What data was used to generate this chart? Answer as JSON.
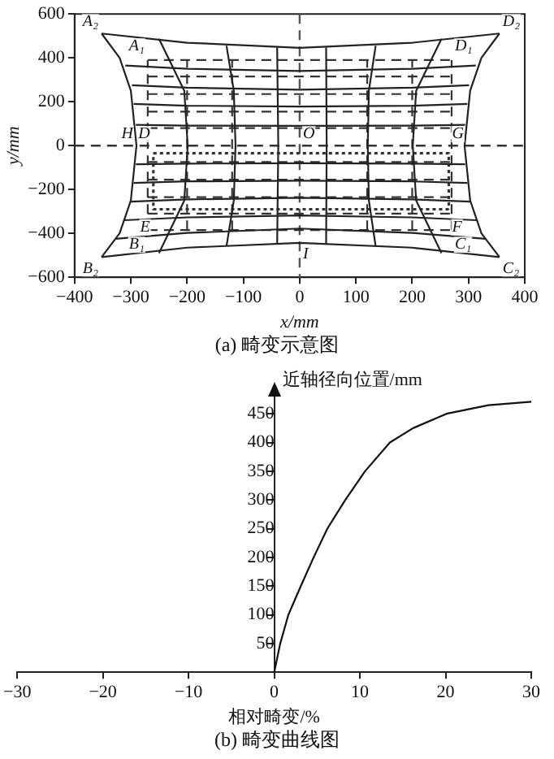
{
  "chart_data": [
    {
      "type": "line",
      "title": "(a) 畸变示意图",
      "xlabel": "x/mm",
      "ylabel": "y/mm",
      "xlim": [
        -400,
        400
      ],
      "ylim": [
        -600,
        600
      ],
      "xticks": [
        -400,
        -300,
        -200,
        -100,
        0,
        100,
        200,
        300,
        400
      ],
      "yticks": [
        -600,
        -400,
        -200,
        0,
        200,
        400,
        600
      ],
      "marker": "none",
      "ref_lines": [
        {
          "axis": "x",
          "value": 0,
          "line_style": "dashed",
          "color": "#555555"
        },
        {
          "axis": "y",
          "value": 0,
          "line_style": "dashed",
          "color": "#333333"
        }
      ],
      "series": [
        {
          "color": "#222222",
          "line_style": "solid",
          "x": [
            -352,
            -200,
            0,
            200,
            355
          ],
          "values": [
            511,
            469,
            446,
            469,
            511
          ]
        },
        {
          "color": "#222222",
          "line_style": "solid",
          "x": [
            -352,
            -200,
            0,
            200,
            355
          ],
          "values": [
            -508,
            -465,
            -443,
            -465,
            -508
          ]
        },
        {
          "color": "#222222",
          "line_style": "solid",
          "x": [
            -352,
            -320,
            -300,
            -290,
            -300,
            -320,
            -352
          ],
          "values": [
            511,
            400,
            250,
            0,
            -250,
            -400,
            -508
          ]
        },
        {
          "color": "#222222",
          "line_style": "solid",
          "x": [
            355,
            323,
            303,
            293,
            303,
            323,
            355
          ],
          "values": [
            511,
            400,
            250,
            0,
            -250,
            -400,
            -508
          ]
        },
        {
          "color": "#222222",
          "line_style": "solid",
          "x": [
            -250,
            -205,
            -199,
            -205,
            -250
          ],
          "values": [
            487,
            250,
            0,
            -250,
            -490
          ]
        },
        {
          "color": "#222222",
          "line_style": "solid",
          "x": [
            -130,
            -117,
            -114,
            -117,
            -130
          ],
          "values": [
            455,
            250,
            0,
            -250,
            -458
          ]
        },
        {
          "color": "#222222",
          "line_style": "solid",
          "x": [
            -40,
            -38,
            -40
          ],
          "values": [
            447,
            0,
            -450
          ]
        },
        {
          "color": "#222222",
          "line_style": "solid",
          "x": [
            47,
            48,
            47
          ],
          "values": [
            447,
            0,
            -450
          ]
        },
        {
          "color": "#222222",
          "line_style": "solid",
          "x": [
            135,
            123,
            121,
            123,
            135
          ],
          "values": [
            455,
            250,
            0,
            -250,
            -458
          ]
        },
        {
          "color": "#222222",
          "line_style": "solid",
          "x": [
            252,
            207,
            201,
            207,
            252
          ],
          "values": [
            487,
            250,
            0,
            -250,
            -490
          ]
        },
        {
          "color": "#222222",
          "line_style": "solid",
          "x": [
            -310,
            -200,
            0,
            200,
            313
          ],
          "values": [
            365,
            350,
            340,
            350,
            365
          ]
        },
        {
          "color": "#222222",
          "line_style": "solid",
          "x": [
            -298,
            -200,
            0,
            200,
            301
          ],
          "values": [
            275,
            264,
            255,
            264,
            275
          ]
        },
        {
          "color": "#222222",
          "line_style": "solid",
          "x": [
            -295,
            -200,
            0,
            200,
            298
          ],
          "values": [
            190,
            182,
            178,
            182,
            190
          ]
        },
        {
          "color": "#222222",
          "line_style": "solid",
          "x": [
            -291,
            -200,
            0,
            200,
            294
          ],
          "values": [
            95,
            91,
            90,
            91,
            95
          ]
        },
        {
          "color": "#222222",
          "line_style": "solid",
          "x": [
            -291,
            -200,
            0,
            200,
            294
          ],
          "values": [
            -85,
            -82,
            -80,
            -82,
            -85
          ]
        },
        {
          "color": "#222222",
          "line_style": "solid",
          "x": [
            -295,
            -200,
            0,
            200,
            298
          ],
          "values": [
            -170,
            -163,
            -160,
            -163,
            -170
          ]
        },
        {
          "color": "#222222",
          "line_style": "solid",
          "x": [
            -300,
            -200,
            0,
            200,
            303
          ],
          "values": [
            -255,
            -245,
            -238,
            -245,
            -255
          ]
        },
        {
          "color": "#222222",
          "line_style": "solid",
          "x": [
            -312,
            -200,
            0,
            200,
            315
          ],
          "values": [
            -340,
            -327,
            -318,
            -327,
            -340
          ]
        },
        {
          "color": "#222222",
          "line_style": "solid",
          "x": [
            -327,
            -200,
            0,
            200,
            330
          ],
          "values": [
            -425,
            -398,
            -378,
            -398,
            -425
          ]
        },
        {
          "color": "#333333",
          "line_style": "dashed",
          "x": [
            -270,
            270
          ],
          "values": [
            390,
            390
          ]
        },
        {
          "color": "#333333",
          "line_style": "dashed",
          "x": [
            -270,
            270
          ],
          "values": [
            315,
            315
          ]
        },
        {
          "color": "#333333",
          "line_style": "dashed",
          "x": [
            -270,
            270
          ],
          "values": [
            235,
            235
          ]
        },
        {
          "color": "#333333",
          "line_style": "dashed",
          "x": [
            -270,
            270
          ],
          "values": [
            155,
            155
          ]
        },
        {
          "color": "#333333",
          "line_style": "dashed",
          "x": [
            -270,
            270
          ],
          "values": [
            80,
            80
          ]
        },
        {
          "color": "#333333",
          "line_style": "dashed",
          "x": [
            -270,
            270
          ],
          "values": [
            -75,
            -75
          ]
        },
        {
          "color": "#333333",
          "line_style": "dashed",
          "x": [
            -270,
            270
          ],
          "values": [
            -155,
            -155
          ]
        },
        {
          "color": "#333333",
          "line_style": "dashed",
          "x": [
            -270,
            270
          ],
          "values": [
            -235,
            -235
          ]
        },
        {
          "color": "#333333",
          "line_style": "dashed",
          "x": [
            -270,
            270
          ],
          "values": [
            -310,
            -310
          ]
        },
        {
          "color": "#333333",
          "line_style": "dashed",
          "x": [
            -270,
            270
          ],
          "values": [
            -385,
            -385
          ]
        },
        {
          "color": "#333333",
          "line_style": "dashed",
          "x": [
            -270,
            -270
          ],
          "values": [
            -385,
            390
          ]
        },
        {
          "color": "#333333",
          "line_style": "dashed",
          "x": [
            -200,
            -200
          ],
          "values": [
            -385,
            390
          ]
        },
        {
          "color": "#333333",
          "line_style": "dashed",
          "x": [
            -120,
            -120
          ],
          "values": [
            -385,
            390
          ]
        },
        {
          "color": "#333333",
          "line_style": "dashed",
          "x": [
            120,
            120
          ],
          "values": [
            -385,
            390
          ]
        },
        {
          "color": "#333333",
          "line_style": "dashed",
          "x": [
            200,
            200
          ],
          "values": [
            -385,
            390
          ]
        },
        {
          "color": "#333333",
          "line_style": "dashed",
          "x": [
            270,
            270
          ],
          "values": [
            -385,
            390
          ]
        },
        {
          "color": "#333333",
          "line_style": "dotted",
          "x": [
            -260,
            265,
            265
          ],
          "values": [
            -35,
            -35,
            -290
          ]
        },
        {
          "color": "#333333",
          "line_style": "dotted",
          "x": [
            265,
            -260,
            -260
          ],
          "values": [
            -290,
            -290,
            -35
          ]
        }
      ],
      "annotations": [
        {
          "text": "A₂",
          "x": -352,
          "y": 511
        },
        {
          "text": "D₂",
          "x": 355,
          "y": 511
        },
        {
          "text": "A₁",
          "x": -270,
          "y": 400
        },
        {
          "text": "D₁",
          "x": 270,
          "y": 400
        },
        {
          "text": "B₁",
          "x": -270,
          "y": -400
        },
        {
          "text": "C₁",
          "x": 270,
          "y": -400
        },
        {
          "text": "B₂",
          "x": -352,
          "y": -508
        },
        {
          "text": "C₂",
          "x": 355,
          "y": -508
        },
        {
          "text": "H",
          "x": -290,
          "y": 0
        },
        {
          "text": "D",
          "x": -260,
          "y": 0
        },
        {
          "text": "O",
          "x": 0,
          "y": 0
        },
        {
          "text": "G",
          "x": 265,
          "y": 0
        },
        {
          "text": "E",
          "x": -260,
          "y": -320
        },
        {
          "text": "F",
          "x": 265,
          "y": -320
        },
        {
          "text": "I",
          "x": 0,
          "y": -443
        }
      ]
    },
    {
      "type": "line",
      "title": "(b) 畸变曲线图",
      "xlabel": "相对畸变/%",
      "ylabel": "近轴径向位置/mm",
      "xlim": [
        -30,
        30
      ],
      "ylim": [
        0,
        480
      ],
      "xticks": [
        -30,
        -20,
        -10,
        0,
        10,
        20,
        30
      ],
      "yticks": [
        50,
        100,
        150,
        200,
        250,
        300,
        350,
        400,
        450
      ],
      "marker": "none",
      "series": [
        {
          "color": "#111111",
          "line_style": "solid",
          "x": [
            0,
            0.7,
            1.65,
            3.1,
            4.6,
            6.2,
            8.3,
            10.6,
            13.5,
            16.2,
            20.1,
            25,
            30
          ],
          "values": [
            0,
            50,
            100,
            150,
            200,
            250,
            300,
            350,
            400,
            425,
            450,
            465,
            471
          ]
        }
      ]
    }
  ]
}
